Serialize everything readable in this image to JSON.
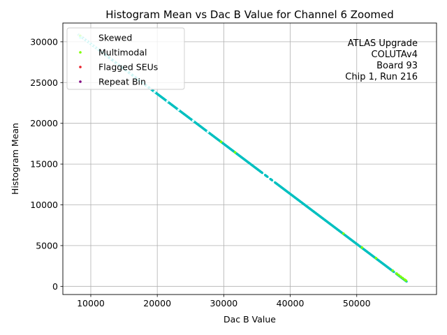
{
  "chart_data": {
    "type": "scatter",
    "title": "Histogram Mean vs Dac B Value for Channel 6 Zoomed",
    "xlabel": "Dac B Value",
    "ylabel": "Histogram Mean",
    "xlim": [
      5800,
      62000
    ],
    "ylim": [
      -1000,
      32300
    ],
    "xticks": [
      10000,
      20000,
      30000,
      40000,
      50000
    ],
    "xtick_labels": [
      "10000",
      "20000",
      "30000",
      "40000",
      "50000"
    ],
    "yticks": [
      0,
      5000,
      10000,
      15000,
      20000,
      25000,
      30000
    ],
    "ytick_labels": [
      "0",
      "5000",
      "10000",
      "15000",
      "20000",
      "25000",
      "30000"
    ],
    "grid": true,
    "legend_position": "top-left",
    "annotation": [
      "ATLAS Upgrade",
      "COLUTAv4",
      "Board 93",
      "Chip 1, Run 216"
    ],
    "series": [
      {
        "name": "",
        "color": "#00c0c0",
        "marker": "dot",
        "line": {
          "x_start": 8200,
          "y_start": 30850,
          "x_end": 57500,
          "y_end": 600,
          "count": 1500
        },
        "gaps": [
          [
            35800,
            36200
          ],
          [
            36600,
            37000
          ],
          [
            37300,
            37700
          ],
          [
            55600,
            55900
          ]
        ]
      },
      {
        "name": "Skewed",
        "color": "#e0ffff",
        "marker": "dot",
        "x": [
          8300,
          8600,
          9000,
          9400,
          9800,
          10200,
          10600,
          11000,
          11500,
          12000,
          12500,
          13000,
          13500,
          14000,
          14500,
          15000,
          15500,
          16000,
          16500,
          17000,
          17500,
          18000,
          18500,
          19000,
          19600,
          21500,
          23200,
          25400,
          27600
        ],
        "y": [
          30790,
          30600,
          30360,
          30110,
          29870,
          29620,
          29380,
          29130,
          28820,
          28520,
          28210,
          27910,
          27600,
          27290,
          26990,
          26680,
          26370,
          26070,
          25760,
          25460,
          25150,
          24840,
          24540,
          24230,
          23860,
          22700,
          21660,
          20310,
          18960
        ]
      },
      {
        "name": "Multimodal",
        "color": "#7fff00",
        "marker": "dot",
        "x": [
          8400,
          29600,
          31700,
          48000,
          50800,
          52900,
          55400,
          56000,
          56300,
          56600,
          56900,
          57200,
          57400
        ],
        "y": [
          30730,
          17730,
          16440,
          6480,
          4760,
          3470,
          1940,
          1570,
          1390,
          1200,
          1020,
          840,
          720
        ]
      },
      {
        "name": "Flagged SEUs",
        "color": "#e8202a",
        "marker": "dot",
        "x": [],
        "y": []
      },
      {
        "name": "Repeat Bin",
        "color": "#800080",
        "marker": "dot",
        "x": [],
        "y": []
      }
    ]
  }
}
